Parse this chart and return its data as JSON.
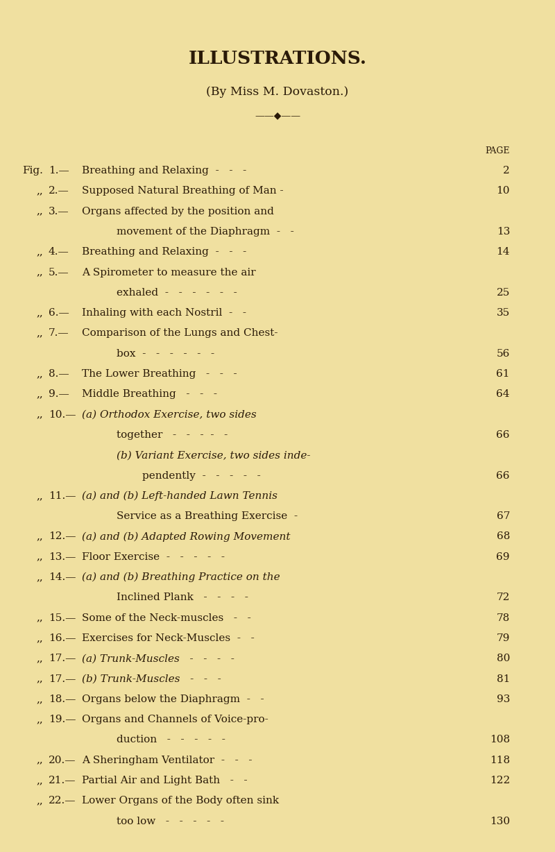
{
  "bg_color": "#f0e0a0",
  "text_color": "#2a1a08",
  "title": "ILLUSTRATIONS.",
  "subtitle": "(By Mɪss M. Dᴏᴠᴀsᴛᴏɴ.)",
  "subtitle_plain": "(By Miss M. Dovaston.)",
  "page_label": "PAGE",
  "entries": [
    {
      "prefix": "Fig.",
      "num": "1",
      "text": "Breathing and Relaxing  -   -   -",
      "page": "2",
      "indent": 0,
      "has_italic_ab": false
    },
    {
      "prefix": ",,",
      "num": "2",
      "text": "Supposed Natural Breathing of Man -",
      "page": "10",
      "indent": 0,
      "has_italic_ab": false
    },
    {
      "prefix": ",,",
      "num": "3",
      "text": "Organs affected by the position and",
      "page": "",
      "indent": 0,
      "has_italic_ab": false
    },
    {
      "prefix": "",
      "num": "",
      "text": "movement of the Diaphragm  -   -",
      "page": "13",
      "indent": 1,
      "has_italic_ab": false
    },
    {
      "prefix": ",,",
      "num": "4",
      "text": "Breathing and Relaxing  -   -   -",
      "page": "14",
      "indent": 0,
      "has_italic_ab": false
    },
    {
      "prefix": ",,",
      "num": "5",
      "text": "A Spirometer to measure the air",
      "page": "",
      "indent": 0,
      "has_italic_ab": false
    },
    {
      "prefix": "",
      "num": "",
      "text": "exhaled  -   -   -   -   -   -",
      "page": "25",
      "indent": 1,
      "has_italic_ab": false
    },
    {
      "prefix": ",,",
      "num": "6",
      "text": "Inhaling with each Nostril  -   -",
      "page": "35",
      "indent": 0,
      "has_italic_ab": false
    },
    {
      "prefix": ",,",
      "num": "7",
      "text": "Comparison of the Lungs and Chest-",
      "page": "",
      "indent": 0,
      "has_italic_ab": false
    },
    {
      "prefix": "",
      "num": "",
      "text": "box  -   -   -   -   -   -",
      "page": "56",
      "indent": 1,
      "has_italic_ab": false
    },
    {
      "prefix": ",,",
      "num": "8",
      "text": "The Lower Breathing   -   -   -",
      "page": "61",
      "indent": 0,
      "has_italic_ab": false
    },
    {
      "prefix": ",,",
      "num": "9",
      "text": "Middle Breathing   -   -   -",
      "page": "64",
      "indent": 0,
      "has_italic_ab": false
    },
    {
      "prefix": ",,",
      "num": "10",
      "text": "(a) Orthodox Exercise, two sides",
      "page": "",
      "indent": 0,
      "has_italic_ab": true
    },
    {
      "prefix": "",
      "num": "",
      "text": "together   -   -   -  -   -",
      "page": "66",
      "indent": 1,
      "has_italic_ab": false
    },
    {
      "prefix": "",
      "num": "",
      "text": "(b) Variant Exercise, two sides inde-",
      "page": "",
      "indent": 1,
      "has_italic_ab": true
    },
    {
      "prefix": "",
      "num": "",
      "text": "pendently  -   -   -   -   -",
      "page": "66",
      "indent": 2,
      "has_italic_ab": false
    },
    {
      "prefix": ",,",
      "num": "11",
      "text": "(a) and (b) Left-handed Lawn Tennis",
      "page": "",
      "indent": 0,
      "has_italic_ab": true
    },
    {
      "prefix": "",
      "num": "",
      "text": "Service as a Breathing Exercise  -",
      "page": "67",
      "indent": 1,
      "has_italic_ab": false
    },
    {
      "prefix": ",,",
      "num": "12",
      "text": "(a) and (b) Adapted Rowing Movement",
      "page": "68",
      "indent": 0,
      "has_italic_ab": true
    },
    {
      "prefix": ",,",
      "num": "13",
      "text": "Floor Exercise  -   -   -   -   -",
      "page": "69",
      "indent": 0,
      "has_italic_ab": false
    },
    {
      "prefix": ",,",
      "num": "14",
      "text": "(a) and (b) Breathing Practice on the",
      "page": "",
      "indent": 0,
      "has_italic_ab": true
    },
    {
      "prefix": "",
      "num": "",
      "text": "Inclined Plank   -   -   -   -",
      "page": "72",
      "indent": 1,
      "has_italic_ab": false
    },
    {
      "prefix": ",,",
      "num": "15",
      "text": "Some of the Neck-muscles   -   -",
      "page": "78",
      "indent": 0,
      "has_italic_ab": false
    },
    {
      "prefix": ",,",
      "num": "16",
      "text": "Exercises for Neck-Muscles  -   -",
      "page": "79",
      "indent": 0,
      "has_italic_ab": false
    },
    {
      "prefix": ",,",
      "num": "17",
      "text": "(a) Trunk-Muscles   -   -   -   -",
      "page": "80",
      "indent": 0,
      "has_italic_ab": true
    },
    {
      "prefix": ",,",
      "num": "17",
      "text": "(b) Trunk-Muscles   -   -   -",
      "page": "81",
      "indent": 0,
      "has_italic_ab": true
    },
    {
      "prefix": ",,",
      "num": "18",
      "text": "Organs below the Diaphragm  -   -",
      "page": "93",
      "indent": 0,
      "has_italic_ab": false
    },
    {
      "prefix": ",,",
      "num": "19",
      "text": "Organs and Channels of Voice-pro-",
      "page": "",
      "indent": 0,
      "has_italic_ab": false
    },
    {
      "prefix": "",
      "num": "",
      "text": "duction   -   -   -   -   -",
      "page": "108",
      "indent": 1,
      "has_italic_ab": false
    },
    {
      "prefix": ",,",
      "num": "20",
      "text": "A Sheringham Ventilator  -   -   -",
      "page": "118",
      "indent": 0,
      "has_italic_ab": false
    },
    {
      "prefix": ",,",
      "num": "21",
      "text": "Partial Air and Light Bath   -   -",
      "page": "122",
      "indent": 0,
      "has_italic_ab": false
    },
    {
      "prefix": ",,",
      "num": "22",
      "text": "Lower Organs of the Body often sink",
      "page": "",
      "indent": 0,
      "has_italic_ab": false
    },
    {
      "prefix": "",
      "num": "",
      "text": "too low   -   -   -   -   -",
      "page": "130",
      "indent": 1,
      "has_italic_ab": false
    }
  ]
}
